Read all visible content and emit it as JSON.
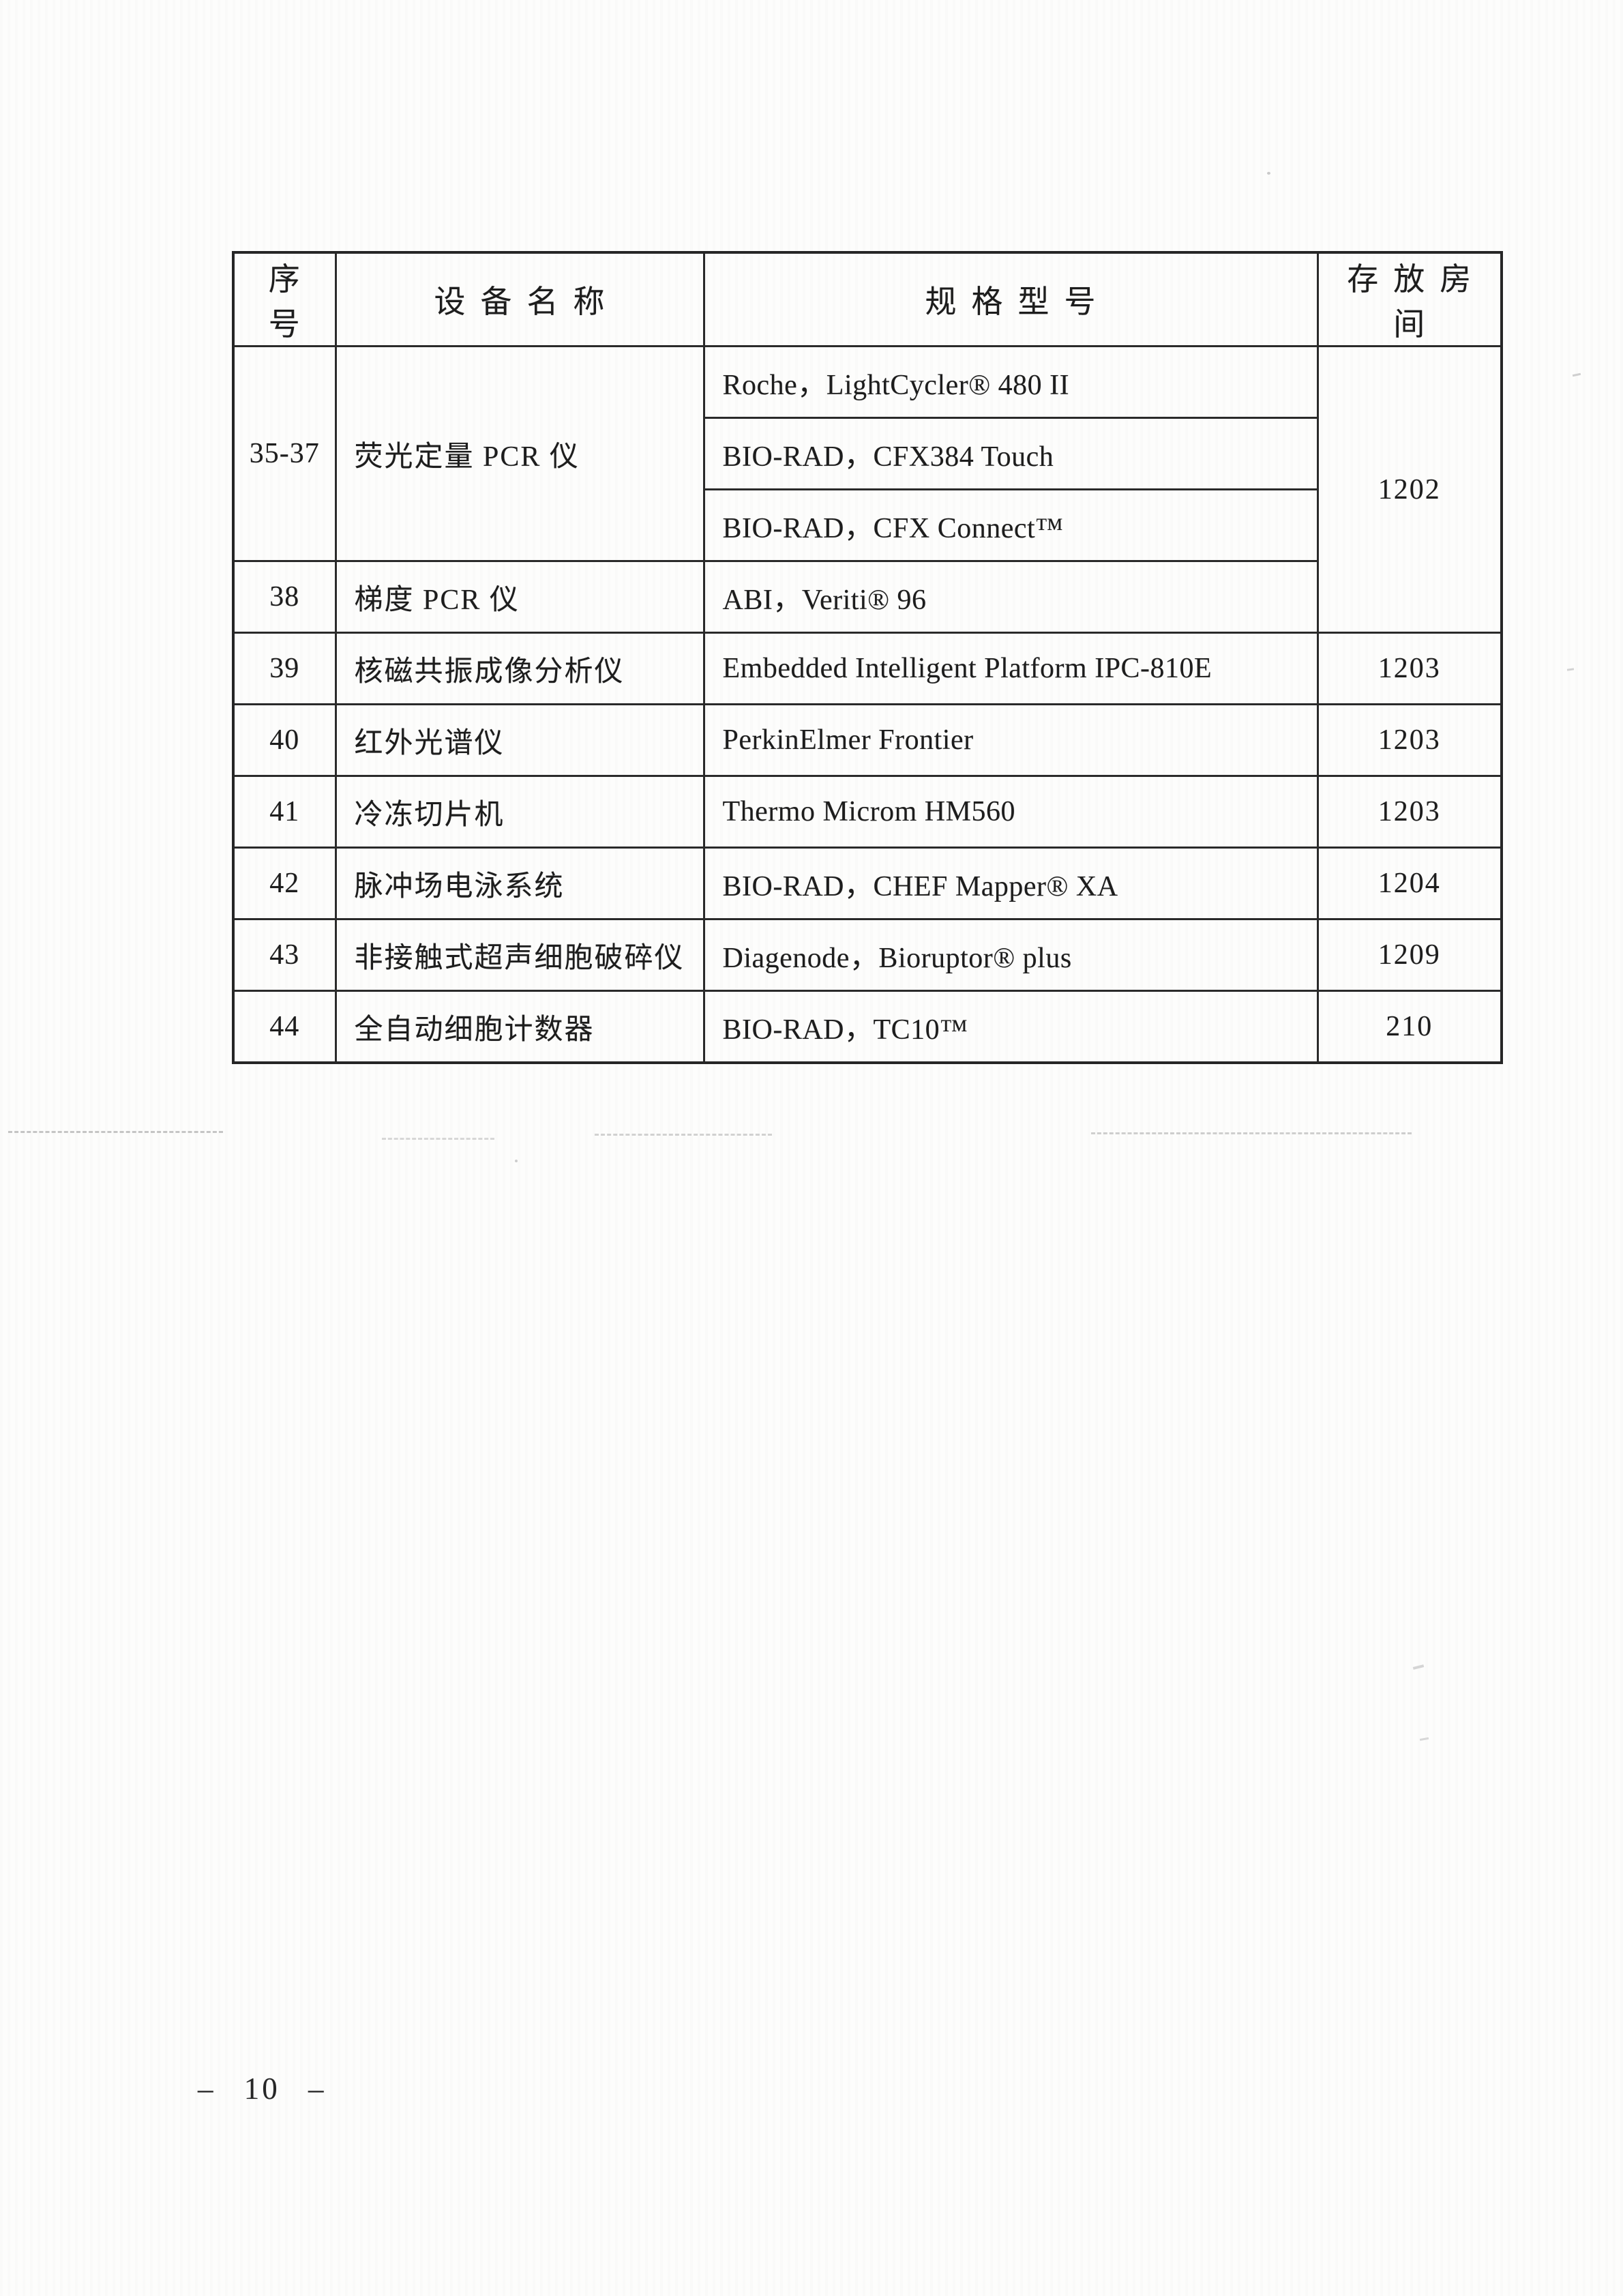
{
  "colors": {
    "paper": "#fdfdfc",
    "ink": "#1d1d1d",
    "table_border": "#2a2a2a"
  },
  "table": {
    "headers": [
      "序号",
      "设备名称",
      "规格型号",
      "存放房间"
    ],
    "rows": [
      {
        "no": "35-37",
        "name": "荧光定量 PCR 仪",
        "model": "Roche，LightCycler® 480 II",
        "room": "1202"
      },
      {
        "model": "BIO-RAD，CFX384 Touch"
      },
      {
        "model": "BIO-RAD，CFX Connect™"
      },
      {
        "no": "38",
        "name": "梯度 PCR 仪",
        "model": "ABI，Veriti® 96"
      },
      {
        "no": "39",
        "name": "核磁共振成像分析仪",
        "model": "Embedded Intelligent Platform IPC-810E",
        "room": "1203"
      },
      {
        "no": "40",
        "name": "红外光谱仪",
        "model": "PerkinElmer Frontier",
        "room": "1203"
      },
      {
        "no": "41",
        "name": "冷冻切片机",
        "model": "Thermo Microm HM560",
        "room": "1203"
      },
      {
        "no": "42",
        "name": "脉冲场电泳系统",
        "model": "BIO-RAD，CHEF Mapper® XA",
        "room": "1204"
      },
      {
        "no": "43",
        "name": "非接触式超声细胞破碎仪",
        "model": "Diagenode，Bioruptor® plus",
        "room": "1209"
      },
      {
        "no": "44",
        "name": "全自动细胞计数器",
        "model": "BIO-RAD，TC10™",
        "room": "210"
      }
    ]
  },
  "footer": {
    "page_number": "– 10 –"
  }
}
